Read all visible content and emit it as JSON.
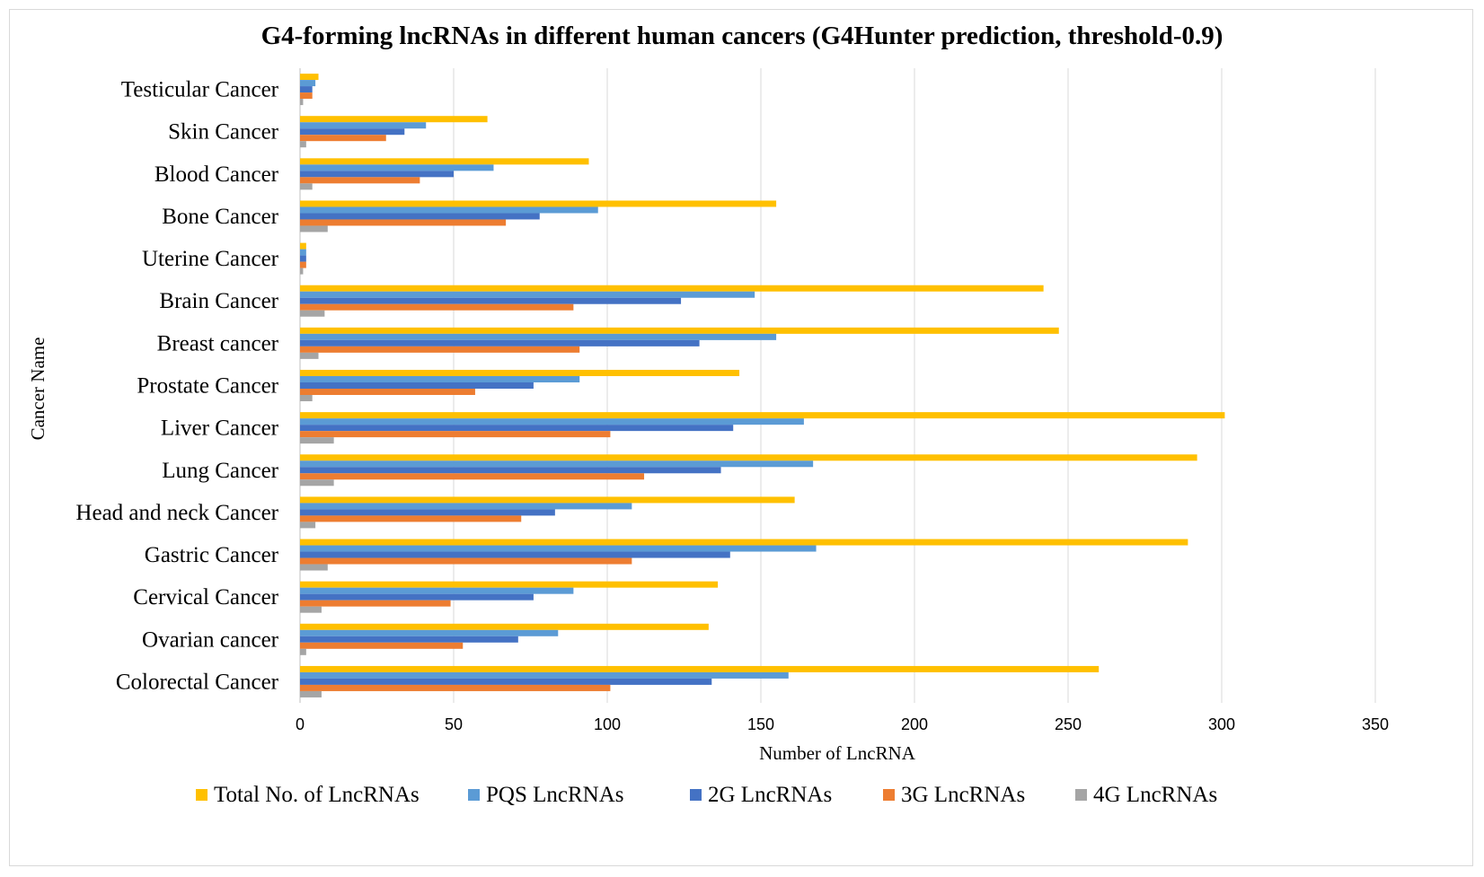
{
  "chart_data": {
    "type": "bar",
    "orientation": "horizontal",
    "title": "G4-forming lncRNAs in different human cancers (G4Hunter prediction, threshold-0.9)",
    "xlabel": "Number of LncRNA",
    "ylabel": "Cancer Name",
    "xlim": [
      0,
      350
    ],
    "xticks": [
      0,
      50,
      100,
      150,
      200,
      250,
      300,
      350
    ],
    "grid": "vertical",
    "legend": "bottom",
    "categories": [
      "Colorectal Cancer",
      "Ovarian cancer",
      "Cervical Cancer",
      "Gastric Cancer",
      "Head and neck Cancer",
      "Lung Cancer",
      "Liver Cancer",
      "Prostate Cancer",
      "Breast cancer",
      "Brain Cancer",
      "Uterine Cancer",
      "Bone Cancer",
      "Blood Cancer",
      "Skin Cancer",
      "Testicular Cancer"
    ],
    "series": [
      {
        "name": "Total No. of LncRNAs",
        "color": "#FFC000",
        "values": [
          260,
          133,
          136,
          289,
          161,
          292,
          301,
          143,
          247,
          242,
          2,
          155,
          94,
          61,
          6
        ]
      },
      {
        "name": "PQS LncRNAs",
        "color": "#5B9BD5",
        "values": [
          159,
          84,
          89,
          168,
          108,
          167,
          164,
          91,
          155,
          148,
          2,
          97,
          63,
          41,
          5
        ]
      },
      {
        "name": "2G LncRNAs",
        "color": "#4472C4",
        "values": [
          134,
          71,
          76,
          140,
          83,
          137,
          141,
          76,
          130,
          124,
          2,
          78,
          50,
          34,
          4
        ]
      },
      {
        "name": "3G LncRNAs",
        "color": "#ED7D31",
        "values": [
          101,
          53,
          49,
          108,
          72,
          112,
          101,
          57,
          91,
          89,
          2,
          67,
          39,
          28,
          4
        ]
      },
      {
        "name": "4G LncRNAs",
        "color": "#A5A5A5",
        "values": [
          7,
          2,
          7,
          9,
          5,
          11,
          11,
          4,
          6,
          8,
          1,
          9,
          4,
          2,
          1
        ]
      }
    ]
  }
}
